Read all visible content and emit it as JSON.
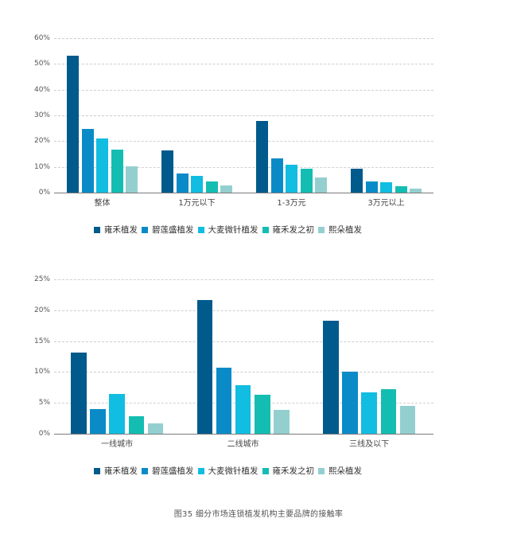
{
  "colors": [
    "#005a8c",
    "#0a8bc8",
    "#11bde0",
    "#14bdb2",
    "#94cfd0"
  ],
  "legend": [
    "雍禾植发",
    "碧莲盛植发",
    "大麦微针植发",
    "雍禾发之初",
    "熙朵植发"
  ],
  "caption": "图35  细分市场连锁植发机构主要品牌的接触率",
  "chart_data": [
    {
      "type": "bar",
      "title": "",
      "xlabel": "",
      "ylabel": "",
      "ylim": [
        0,
        60
      ],
      "yticks": [
        "0%",
        "10%",
        "20%",
        "30%",
        "40%",
        "50%",
        "60%"
      ],
      "grid": true,
      "legend_position": "bottom",
      "categories": [
        "整体",
        "1万元以下",
        "1-3万元",
        "3万元以上"
      ],
      "series": [
        {
          "name": "雍禾植发",
          "values": [
            53.2,
            16.4,
            27.9,
            9.4
          ]
        },
        {
          "name": "碧莲盛植发",
          "values": [
            24.8,
            7.4,
            13.3,
            4.4
          ]
        },
        {
          "name": "大麦微针植发",
          "values": [
            21.0,
            6.5,
            10.8,
            4.0
          ]
        },
        {
          "name": "雍禾发之初",
          "values": [
            16.7,
            4.3,
            9.3,
            2.6
          ]
        },
        {
          "name": "熙朵植发",
          "values": [
            10.2,
            2.8,
            5.9,
            1.6
          ]
        }
      ]
    },
    {
      "type": "bar",
      "title": "",
      "xlabel": "",
      "ylabel": "",
      "ylim": [
        0,
        25
      ],
      "yticks": [
        "0%",
        "5%",
        "10%",
        "15%",
        "20%",
        "25%"
      ],
      "grid": true,
      "legend_position": "bottom",
      "categories": [
        "一线城市",
        "二线城市",
        "三线及以下"
      ],
      "series": [
        {
          "name": "雍禾植发",
          "values": [
            13.2,
            21.7,
            18.3
          ]
        },
        {
          "name": "碧莲盛植发",
          "values": [
            4.0,
            10.7,
            10.1
          ]
        },
        {
          "name": "大麦微针植发",
          "values": [
            6.5,
            7.9,
            6.7
          ]
        },
        {
          "name": "雍禾发之初",
          "values": [
            2.8,
            6.3,
            7.2
          ]
        },
        {
          "name": "熙朵植发",
          "values": [
            1.7,
            3.9,
            4.5
          ]
        }
      ]
    }
  ]
}
